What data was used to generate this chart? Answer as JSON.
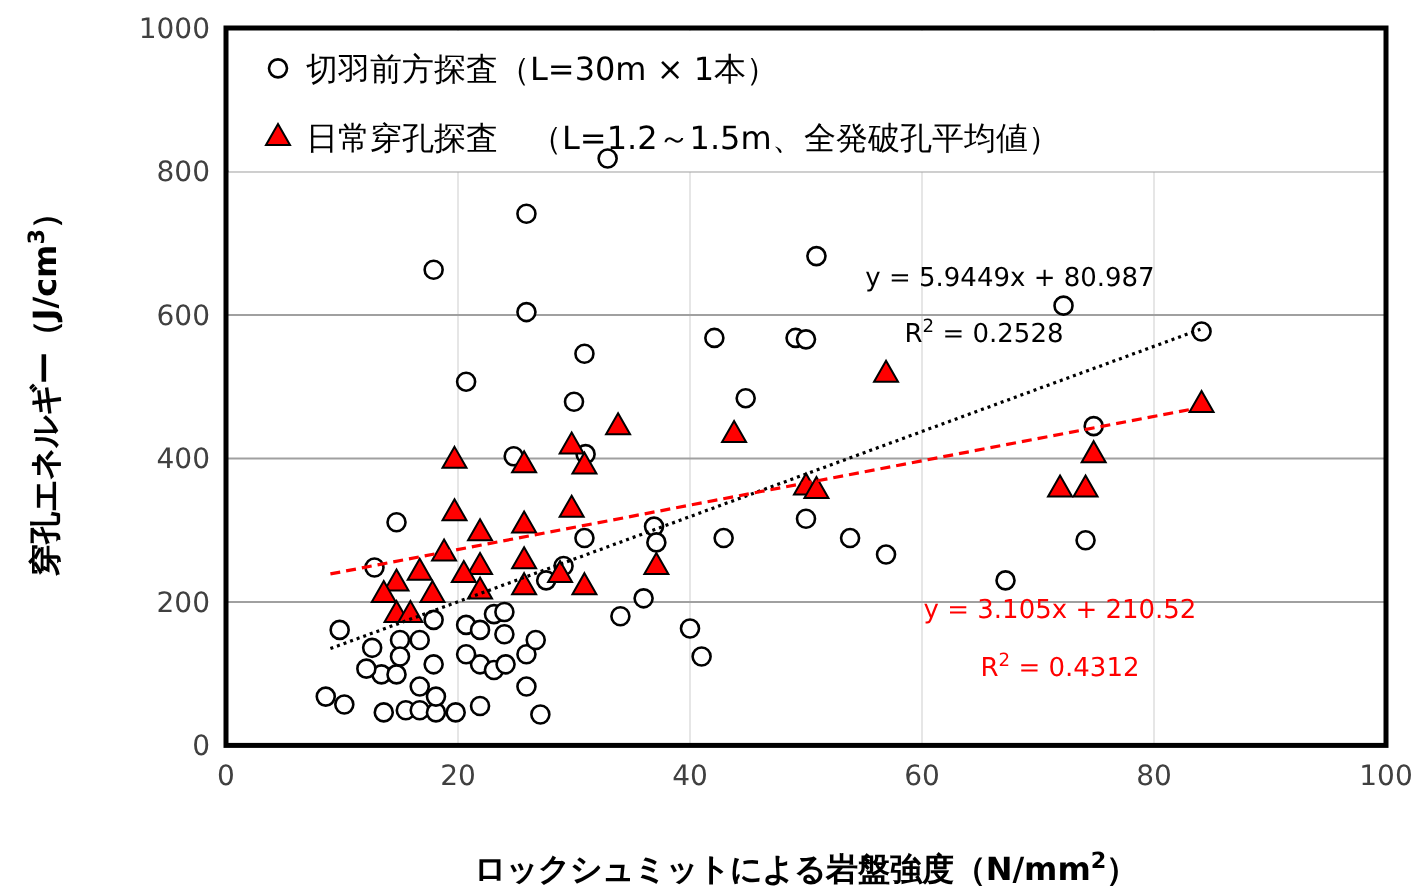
{
  "chart_data": {
    "type": "scatter",
    "xlabel": "ロックシュミットによる岩盤強度（N/mm$^{2}$）",
    "ylabel": "穿孔エネルギー（J/cm$^{3}$）",
    "xlim": [
      0,
      100
    ],
    "ylim": [
      0,
      1000
    ],
    "xticks": [
      0,
      20,
      40,
      60,
      80,
      100
    ],
    "yticks": [
      0,
      200,
      400,
      600,
      800,
      1000
    ],
    "grid": true,
    "legend": "top left",
    "series": [
      {
        "name": "切羽前方探査（L=30m × 1本）",
        "color": "#000000",
        "marker": "circle",
        "x": [
          32.9,
          25.9,
          17.9,
          25.9,
          30.9,
          20.7,
          30.0,
          42.1,
          49.1,
          50.9,
          72.2,
          50.0,
          84.1,
          44.8,
          74.8,
          36.9,
          37.1,
          42.9,
          50.0,
          53.8,
          56.9,
          67.2,
          74.1,
          34.0,
          36.0,
          40.0,
          41.0,
          24.8,
          31.0,
          14.7,
          30.9,
          12.8,
          29.1,
          27.6,
          9.8,
          12.6,
          13.4,
          12.1,
          15.0,
          15.0,
          14.7,
          16.7,
          17.9,
          17.9,
          16.7,
          8.6,
          10.2,
          13.6,
          15.5,
          16.7,
          18.1,
          19.8,
          21.9,
          18.1,
          20.7,
          21.9,
          23.1,
          24.0,
          24.0,
          21.9,
          23.1,
          24.1,
          25.9,
          26.7,
          25.9,
          27.1,
          20.7
        ],
        "values": [
          818,
          741,
          663,
          604,
          546,
          507,
          479,
          568,
          568,
          682,
          613,
          566,
          577,
          484,
          445,
          305,
          283,
          289,
          316,
          289,
          266,
          230,
          286,
          180,
          205,
          163,
          124,
          403,
          406,
          311,
          289,
          248,
          250,
          230,
          161,
          136,
          99,
          107,
          147,
          124,
          99,
          147,
          175,
          113,
          82,
          68,
          57,
          46,
          49,
          49,
          46,
          46,
          55,
          68,
          168,
          161,
          183,
          186,
          155,
          113,
          105,
          113,
          127,
          147,
          82,
          43,
          127
        ]
      },
      {
        "name": "日常穿孔探査　（L=1.2～1.5m、全発破孔平均値）",
        "color": "#ff0000",
        "marker": "triangle",
        "x": [
          19.7,
          25.7,
          29.8,
          30.9,
          33.8,
          19.7,
          21.9,
          25.7,
          29.8,
          18.8,
          16.7,
          14.7,
          13.6,
          17.8,
          21.9,
          20.5,
          21.9,
          25.7,
          25.7,
          28.8,
          30.9,
          14.7,
          15.9,
          56.9,
          43.8,
          50.0,
          50.9,
          37.1,
          71.9,
          74.1,
          74.8,
          84.1
        ],
        "values": [
          398,
          392,
          418,
          390,
          445,
          325,
          297,
          308,
          330,
          269,
          242,
          227,
          211,
          211,
          250,
          239,
          216,
          258,
          222,
          239,
          222,
          183,
          183,
          518,
          434,
          361,
          356,
          250,
          358,
          358,
          406,
          476
        ]
      },
      {
        "type": "line",
        "color": "#000000",
        "line_style": "dotted",
        "marker": "none",
        "x": [
          9,
          84
        ],
        "values": [
          135,
          580
        ]
      },
      {
        "type": "line",
        "color": "#ff0000",
        "line_style": "dashed",
        "marker": "none",
        "x": [
          9,
          84
        ],
        "values": [
          239,
          471
        ]
      }
    ],
    "annotations": [
      "y = 5.9449x + 80.987",
      "R$^{2}$ = 0.2528",
      "y = 3.105x + 210.52",
      "R$^{2}$ = 0.4312"
    ]
  }
}
